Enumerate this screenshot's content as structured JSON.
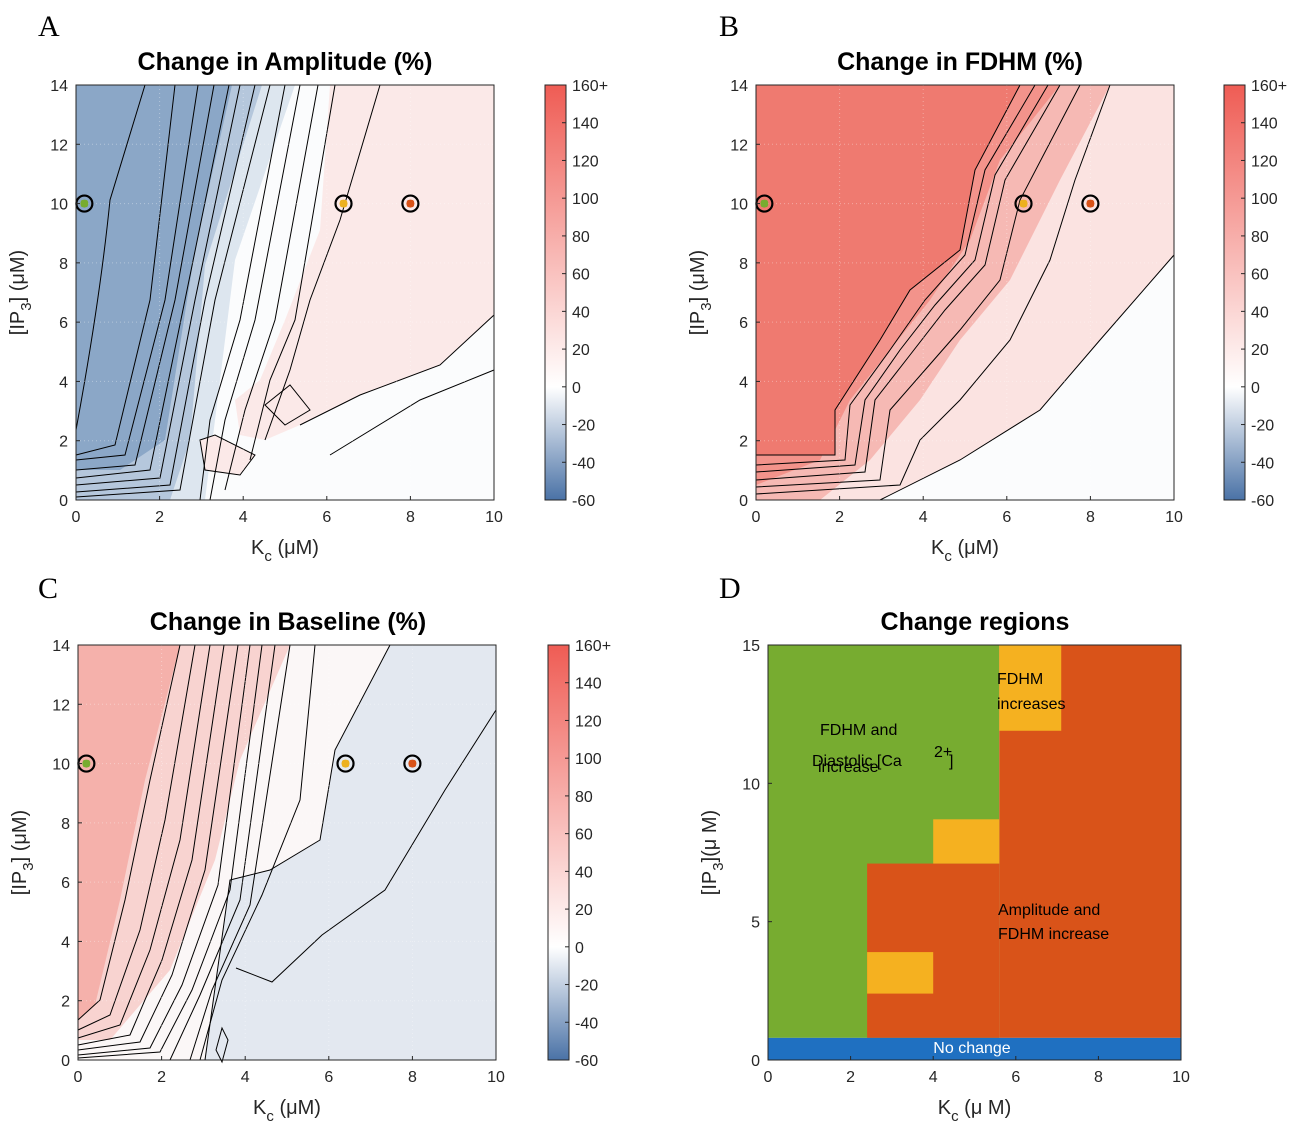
{
  "chart_data": [
    {
      "id": "A",
      "type": "contour",
      "panel_letter": "A",
      "title": "Change in Amplitude (%)",
      "xlabel": "K",
      "xlabel_sub": "c",
      "xlabel_unit": " (μM)",
      "ylabel_pre": "[IP",
      "ylabel_sub": "3",
      "ylabel_post": "] (μM)",
      "xlim": [
        0,
        10
      ],
      "ylim": [
        0,
        14
      ],
      "xticks": [
        "0",
        "2",
        "4",
        "6",
        "8",
        "10"
      ],
      "yticks": [
        "0",
        "2",
        "4",
        "6",
        "8",
        "10",
        "12",
        "14"
      ],
      "colorbar": {
        "ticks": [
          "160+",
          "140",
          "120",
          "100",
          "80",
          "60",
          "40",
          "20",
          "0",
          "-20",
          "-40",
          "-60"
        ],
        "range": [
          -60,
          160
        ]
      },
      "markers": [
        {
          "x": 0.2,
          "y": 10,
          "color": "#77ac30"
        },
        {
          "x": 6.4,
          "y": 10,
          "color": "#edb120"
        },
        {
          "x": 8.0,
          "y": 10,
          "color": "#d95319"
        }
      ]
    },
    {
      "id": "B",
      "type": "contour",
      "panel_letter": "B",
      "title": "Change in FDHM (%)",
      "xlabel": "K",
      "xlabel_sub": "c",
      "xlabel_unit": " (μM)",
      "ylabel_pre": "[IP",
      "ylabel_sub": "3",
      "ylabel_post": "] (μM)",
      "xlim": [
        0,
        10
      ],
      "ylim": [
        0,
        14
      ],
      "xticks": [
        "0",
        "2",
        "4",
        "6",
        "8",
        "10"
      ],
      "yticks": [
        "0",
        "2",
        "4",
        "6",
        "8",
        "10",
        "12",
        "14"
      ],
      "colorbar": {
        "ticks": [
          "160+",
          "140",
          "120",
          "100",
          "80",
          "60",
          "40",
          "20",
          "0",
          "-20",
          "-40",
          "-60"
        ],
        "range": [
          -60,
          160
        ]
      },
      "markers": [
        {
          "x": 0.2,
          "y": 10,
          "color": "#77ac30"
        },
        {
          "x": 6.4,
          "y": 10,
          "color": "#edb120"
        },
        {
          "x": 8.0,
          "y": 10,
          "color": "#d95319"
        }
      ]
    },
    {
      "id": "C",
      "type": "contour",
      "panel_letter": "C",
      "title": "Change in Baseline (%)",
      "xlabel": "K",
      "xlabel_sub": "c",
      "xlabel_unit": " (μM)",
      "ylabel_pre": "[IP",
      "ylabel_sub": "3",
      "ylabel_post": "] (μM)",
      "xlim": [
        0,
        10
      ],
      "ylim": [
        0,
        14
      ],
      "xticks": [
        "0",
        "2",
        "4",
        "6",
        "8",
        "10"
      ],
      "yticks": [
        "0",
        "2",
        "4",
        "6",
        "8",
        "10",
        "12",
        "14"
      ],
      "colorbar": {
        "ticks": [
          "160+",
          "140",
          "120",
          "100",
          "80",
          "60",
          "40",
          "20",
          "0",
          "-20",
          "-40",
          "-60"
        ],
        "range": [
          -60,
          160
        ]
      },
      "markers": [
        {
          "x": 0.2,
          "y": 10,
          "color": "#77ac30"
        },
        {
          "x": 6.4,
          "y": 10,
          "color": "#edb120"
        },
        {
          "x": 8.0,
          "y": 10,
          "color": "#d95319"
        }
      ]
    },
    {
      "id": "D",
      "type": "heatmap",
      "panel_letter": "D",
      "title": "Change regions",
      "xlabel": "K",
      "xlabel_sub": "c",
      "xlabel_unit": " (μ M)",
      "ylabel_pre": "[IP",
      "ylabel_sub": "3",
      "ylabel_post": "](μ M)",
      "xlim": [
        0,
        10
      ],
      "ylim": [
        0,
        15
      ],
      "xticks": [
        "0",
        "2",
        "4",
        "6",
        "8",
        "10"
      ],
      "yticks": [
        "0",
        "5",
        "10",
        "15"
      ],
      "colors": {
        "green": "#77ac30",
        "orange": "#d95319",
        "yellow": "#f5b120",
        "blue": "#1f70c1"
      },
      "regions": [
        {
          "color": "green",
          "x0": 0,
          "x1": 5.6,
          "y0": 0.8,
          "y1": 15
        },
        {
          "color": "orange",
          "x0": 5.6,
          "x1": 10,
          "y0": 0.8,
          "y1": 15
        },
        {
          "color": "orange",
          "x0": 2.4,
          "x1": 5.6,
          "y0": 0.8,
          "y1": 7.1
        },
        {
          "color": "yellow",
          "x0": 5.6,
          "x1": 7.1,
          "y0": 11.9,
          "y1": 15
        },
        {
          "color": "yellow",
          "x0": 4.0,
          "x1": 5.6,
          "y0": 7.1,
          "y1": 8.7
        },
        {
          "color": "yellow",
          "x0": 2.4,
          "x1": 4.0,
          "y0": 2.4,
          "y1": 3.9
        },
        {
          "color": "blue",
          "x0": 0,
          "x1": 10,
          "y0": 0,
          "y1": 0.8
        }
      ],
      "labels": {
        "green_region": [
          "FDHM and",
          "Diastolic [Ca",
          "increase"
        ],
        "green_superscript": "2+",
        "green_bracket": "]",
        "yellow_region": [
          "FDHM",
          "increases"
        ],
        "orange_region": [
          "Amplitude and",
          "FDHM increase"
        ],
        "blue_region": "No change"
      }
    }
  ]
}
